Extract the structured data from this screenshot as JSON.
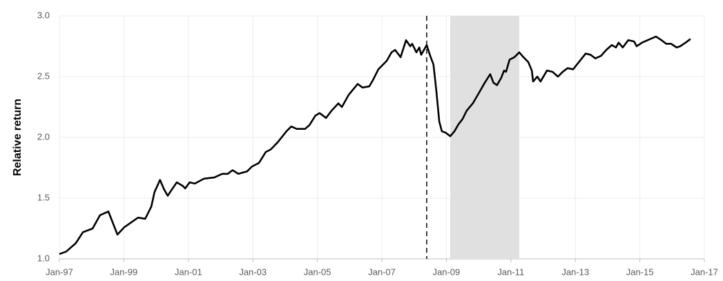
{
  "chart_data": {
    "type": "line",
    "y_label": "Relative return",
    "xlim": [
      1997,
      2017
    ],
    "xticks": [
      {
        "value": 1997,
        "label": "Jan-97"
      },
      {
        "value": 1999,
        "label": "Jan-99"
      },
      {
        "value": 2001,
        "label": "Jan-01"
      },
      {
        "value": 2003,
        "label": "Jan-03"
      },
      {
        "value": 2005,
        "label": "Jan-05"
      },
      {
        "value": 2007,
        "label": "Jan-07"
      },
      {
        "value": 2009,
        "label": "Jan-09"
      },
      {
        "value": 2011,
        "label": "Jan-11"
      },
      {
        "value": 2013,
        "label": "Jan-13"
      },
      {
        "value": 2015,
        "label": "Jan-15"
      },
      {
        "value": 2017,
        "label": "Jan-17"
      }
    ],
    "ylim": [
      1.0,
      3.0
    ],
    "yticks": [
      {
        "value": 1.0,
        "label": "1.0"
      },
      {
        "value": 1.5,
        "label": "1.5"
      },
      {
        "value": 2.0,
        "label": "2.0"
      },
      {
        "value": 2.5,
        "label": "2.5"
      },
      {
        "value": 3.0,
        "label": "3.0"
      }
    ],
    "grid": true,
    "vline_x": 2008.39,
    "shaded_x": [
      2009.12,
      2011.26
    ],
    "shade_color": "#e0e0e0",
    "x": [
      1997.0,
      1997.21,
      1997.51,
      1997.73,
      1998.03,
      1998.26,
      1998.52,
      1998.8,
      1999.01,
      1999.44,
      1999.66,
      1999.85,
      1999.95,
      2000.12,
      2000.25,
      2000.36,
      2000.51,
      2000.64,
      2000.83,
      2000.9,
      2001.04,
      2001.2,
      2001.48,
      2001.8,
      2002.05,
      2002.22,
      2002.37,
      2002.55,
      2002.82,
      2002.97,
      2003.19,
      2003.4,
      2003.55,
      2003.77,
      2004.04,
      2004.19,
      2004.36,
      2004.62,
      2004.75,
      2004.94,
      2005.07,
      2005.27,
      2005.44,
      2005.65,
      2005.76,
      2005.97,
      2006.25,
      2006.4,
      2006.61,
      2006.72,
      2006.89,
      2007.15,
      2007.3,
      2007.41,
      2007.58,
      2007.75,
      2007.88,
      2007.94,
      2008.07,
      2008.16,
      2008.22,
      2008.39,
      2008.5,
      2008.6,
      2008.69,
      2008.78,
      2008.86,
      2008.97,
      2009.12,
      2009.25,
      2009.38,
      2009.5,
      2009.63,
      2009.82,
      2010.04,
      2010.19,
      2010.36,
      2010.46,
      2010.57,
      2010.7,
      2010.79,
      2010.85,
      2010.96,
      2011.11,
      2011.26,
      2011.39,
      2011.54,
      2011.65,
      2011.69,
      2011.82,
      2011.92,
      2012.12,
      2012.29,
      2012.46,
      2012.61,
      2012.76,
      2012.93,
      2013.14,
      2013.32,
      2013.47,
      2013.62,
      2013.79,
      2013.96,
      2014.13,
      2014.26,
      2014.34,
      2014.47,
      2014.64,
      2014.82,
      2014.9,
      2015.07,
      2015.24,
      2015.5,
      2015.67,
      2015.82,
      2015.97,
      2016.14,
      2016.25,
      2016.42,
      2016.57
    ],
    "series": [
      {
        "color": "#000000",
        "values": [
          1.04,
          1.06,
          1.13,
          1.22,
          1.25,
          1.36,
          1.39,
          1.2,
          1.26,
          1.34,
          1.33,
          1.43,
          1.55,
          1.65,
          1.57,
          1.52,
          1.58,
          1.63,
          1.6,
          1.58,
          1.63,
          1.62,
          1.66,
          1.67,
          1.7,
          1.7,
          1.73,
          1.7,
          1.72,
          1.76,
          1.79,
          1.88,
          1.9,
          1.96,
          2.05,
          2.09,
          2.07,
          2.07,
          2.1,
          2.18,
          2.2,
          2.16,
          2.22,
          2.28,
          2.25,
          2.35,
          2.44,
          2.41,
          2.42,
          2.47,
          2.56,
          2.63,
          2.7,
          2.72,
          2.66,
          2.8,
          2.75,
          2.77,
          2.7,
          2.74,
          2.68,
          2.76,
          2.67,
          2.6,
          2.38,
          2.13,
          2.05,
          2.04,
          2.01,
          2.05,
          2.11,
          2.15,
          2.22,
          2.28,
          2.38,
          2.45,
          2.52,
          2.45,
          2.43,
          2.49,
          2.55,
          2.54,
          2.64,
          2.66,
          2.7,
          2.66,
          2.62,
          2.55,
          2.46,
          2.5,
          2.46,
          2.55,
          2.54,
          2.5,
          2.54,
          2.57,
          2.56,
          2.63,
          2.69,
          2.68,
          2.65,
          2.67,
          2.72,
          2.76,
          2.74,
          2.78,
          2.74,
          2.8,
          2.79,
          2.75,
          2.78,
          2.8,
          2.83,
          2.8,
          2.77,
          2.77,
          2.74,
          2.75,
          2.78,
          2.81
        ]
      }
    ]
  }
}
